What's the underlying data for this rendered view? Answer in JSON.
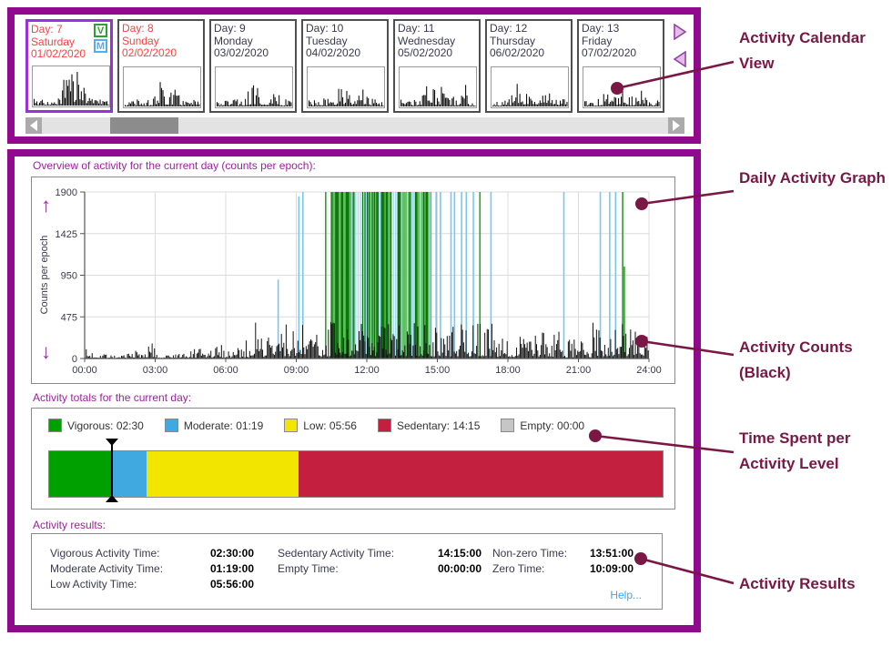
{
  "app": {
    "frame_color": "#90098F",
    "accent_label_color": "#A020A0",
    "annotation_color": "#7A1845"
  },
  "calendar": {
    "days": [
      {
        "day_label": "Day: 7",
        "weekday": "Saturday",
        "date": "01/02/2020",
        "weekend": true,
        "selected": true,
        "badges": [
          "V",
          "M"
        ],
        "seed": 7,
        "mini_clusters": [
          [
            0.52,
            0.1,
            1.0
          ],
          [
            0.42,
            0.05,
            0.55
          ],
          [
            0.68,
            0.06,
            0.38
          ]
        ]
      },
      {
        "day_label": "Day: 8",
        "weekday": "Sunday",
        "date": "02/02/2020",
        "weekend": true,
        "selected": false,
        "badges": [],
        "seed": 8,
        "mini_clusters": [
          [
            0.45,
            0.08,
            0.5
          ],
          [
            0.62,
            0.1,
            0.32
          ]
        ]
      },
      {
        "day_label": "Day: 9",
        "weekday": "Monday",
        "date": "03/02/2020",
        "weekend": false,
        "selected": false,
        "badges": [],
        "seed": 9,
        "mini_clusters": [
          [
            0.5,
            0.12,
            0.42
          ],
          [
            0.76,
            0.08,
            0.38
          ]
        ]
      },
      {
        "day_label": "Day: 10",
        "weekday": "Tuesday",
        "date": "04/02/2020",
        "weekend": false,
        "selected": false,
        "badges": [],
        "seed": 10,
        "mini_clusters": [
          [
            0.45,
            0.15,
            0.42
          ],
          [
            0.7,
            0.1,
            0.36
          ]
        ]
      },
      {
        "day_label": "Day: 11",
        "weekday": "Wednesday",
        "date": "05/02/2020",
        "weekend": false,
        "selected": false,
        "badges": [],
        "seed": 11,
        "mini_clusters": [
          [
            0.35,
            0.08,
            0.4
          ],
          [
            0.55,
            0.12,
            0.36
          ],
          [
            0.85,
            0.05,
            0.46
          ]
        ]
      },
      {
        "day_label": "Day: 12",
        "weekday": "Thursday",
        "date": "06/02/2020",
        "weekend": false,
        "selected": false,
        "badges": [],
        "seed": 12,
        "mini_clusters": [
          [
            0.35,
            0.1,
            0.46
          ],
          [
            0.55,
            0.08,
            0.4
          ],
          [
            0.75,
            0.06,
            0.36
          ]
        ]
      },
      {
        "day_label": "Day: 13",
        "weekday": "Friday",
        "date": "07/02/2020",
        "weekend": false,
        "selected": false,
        "badges": [],
        "seed": 13,
        "mini_clusters": [
          [
            0.3,
            0.06,
            0.46
          ],
          [
            0.5,
            0.08,
            0.5
          ],
          [
            0.72,
            0.06,
            0.42
          ]
        ]
      }
    ]
  },
  "overview": {
    "label": "Overview of activity for the current day (counts per epoch):"
  },
  "chart_data": {
    "type": "bar",
    "title": "Overview of activity for the current day (counts per epoch)",
    "ylabel": "Counts per epoch",
    "ylim": [
      0,
      1900
    ],
    "yticks": [
      0,
      475,
      950,
      1425,
      1900
    ],
    "xtick_labels": [
      "00:00",
      "03:00",
      "06:00",
      "09:00",
      "12:00",
      "15:00",
      "18:00",
      "21:00",
      "24:00"
    ],
    "x_range_hours": [
      0,
      24
    ],
    "epoch_minutes": 3,
    "grid": true,
    "black_envelope": [
      [
        0.0,
        0.9,
        110
      ],
      [
        0.9,
        1.8,
        40
      ],
      [
        1.8,
        2.5,
        100
      ],
      [
        2.5,
        3.1,
        190
      ],
      [
        3.1,
        4.4,
        55
      ],
      [
        4.4,
        5.4,
        115
      ],
      [
        5.4,
        6.5,
        165
      ],
      [
        6.5,
        7.0,
        210
      ],
      [
        7.0,
        7.4,
        470
      ],
      [
        7.4,
        8.3,
        330
      ],
      [
        8.3,
        9.4,
        440
      ],
      [
        9.4,
        10.45,
        380
      ],
      [
        10.45,
        14.75,
        430
      ],
      [
        14.75,
        16.4,
        390
      ],
      [
        16.4,
        17.5,
        440
      ],
      [
        17.5,
        19.1,
        300
      ],
      [
        19.1,
        20.4,
        310
      ],
      [
        20.4,
        21.6,
        220
      ],
      [
        21.6,
        22.8,
        430
      ],
      [
        22.8,
        24.0,
        470
      ]
    ],
    "vigorous_block": {
      "start": 10.45,
      "end": 14.75,
      "gaps": [
        [
          11.55,
          11.78
        ],
        [
          13.05,
          13.28
        ]
      ]
    },
    "moderate_lines": [
      [
        8.2,
        900
      ],
      [
        9.08,
        1850
      ],
      [
        9.25,
        1900
      ],
      [
        14.92,
        1900
      ],
      [
        15.1,
        1900
      ],
      [
        15.55,
        1900
      ],
      [
        15.7,
        1900
      ],
      [
        16.0,
        1900
      ],
      [
        16.2,
        1900
      ],
      [
        16.5,
        1900
      ],
      [
        17.25,
        1900
      ],
      [
        20.35,
        1900
      ],
      [
        21.9,
        1900
      ],
      [
        22.3,
        1900
      ],
      [
        22.55,
        1900
      ]
    ],
    "vigorous_lines": [
      [
        10.22,
        1900
      ],
      [
        16.78,
        1900
      ],
      [
        22.85,
        1900
      ],
      [
        22.92,
        1050
      ]
    ],
    "colors": {
      "black": "#111111",
      "vigorous_dark": "#0A760A",
      "vigorous_light": "#5FBE5F",
      "moderate_block": "#A6DDF5",
      "moderate_line": "#79C7EF",
      "vigorous_line": "#2F9E2F"
    }
  },
  "totals": {
    "label": "Activity totals for the current day:",
    "legend": [
      {
        "name": "Vigorous",
        "time": "02:30",
        "display": "Vigorous: 02:30",
        "color": "#00A000"
      },
      {
        "name": "Moderate",
        "time": "01:19",
        "display": "Moderate: 01:19",
        "color": "#3FA9E0"
      },
      {
        "name": "Low",
        "time": "05:56",
        "display": "Low: 05:56",
        "color": "#F2E500"
      },
      {
        "name": "Sedentary",
        "time": "14:15",
        "display": "Sedentary: 14:15",
        "color": "#C2203E"
      },
      {
        "name": "Empty",
        "time": "00:00",
        "display": "Empty: 00:00",
        "color": "#C6C6C6"
      }
    ],
    "marker_time": "02:30",
    "total_hours": 24
  },
  "results": {
    "label": "Activity results:",
    "columns": [
      [
        {
          "label": "Vigorous Activity Time:",
          "value": "02:30:00"
        },
        {
          "label": "Moderate Activity Time:",
          "value": "01:19:00"
        },
        {
          "label": "Low Activity Time:",
          "value": "05:56:00"
        }
      ],
      [
        {
          "label": "Sedentary Activity Time:",
          "value": "14:15:00"
        },
        {
          "label": "Empty Time:",
          "value": "00:00:00"
        }
      ],
      [
        {
          "label": "Non-zero Time:",
          "value": "13:51:00"
        },
        {
          "label": "Zero Time:",
          "value": "10:09:00"
        }
      ]
    ],
    "help_label": "Help..."
  },
  "annotations": [
    {
      "label": "Activity Calendar View"
    },
    {
      "label": "Daily Activity Graph"
    },
    {
      "label": "Activity Counts (Black)"
    },
    {
      "label": "Time Spent per Activity Level"
    },
    {
      "label": "Activity Results"
    }
  ]
}
